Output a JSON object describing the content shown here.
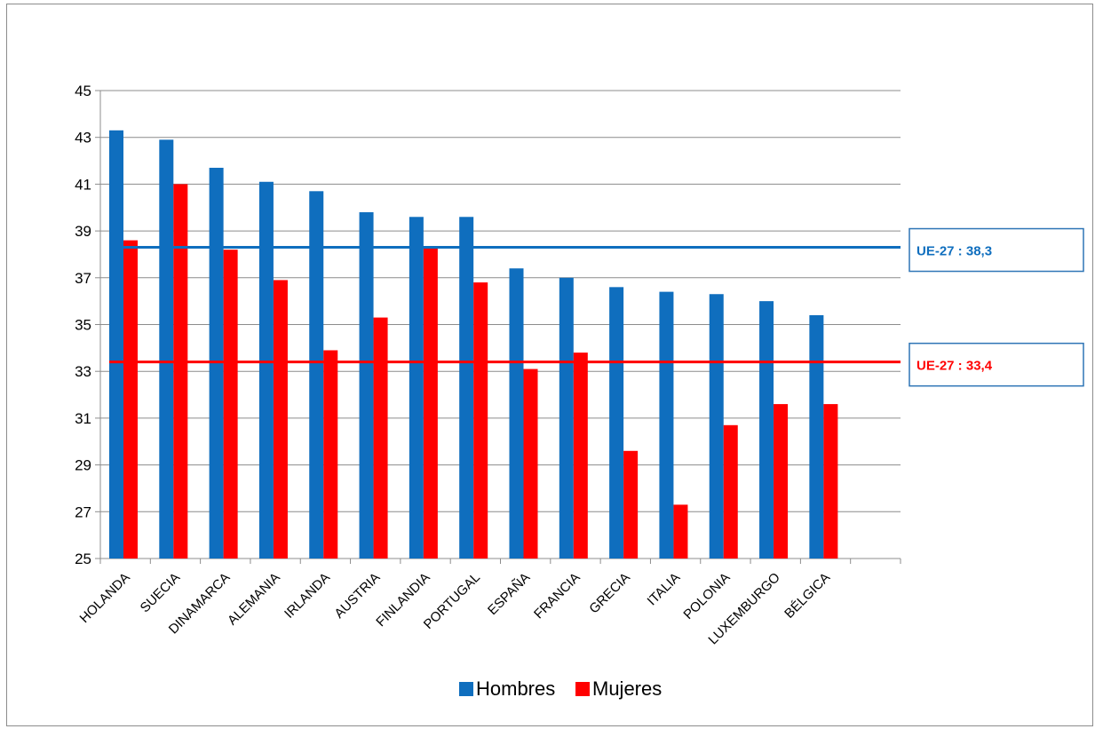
{
  "chart_data": {
    "type": "bar",
    "categories": [
      "HOLANDA",
      "SUECIA",
      "DINAMARCA",
      "ALEMANIA",
      "IRLANDA",
      "AUSTRIA",
      "FINLANDIA",
      "PORTUGAL",
      "ESPAÑA",
      "FRANCIA",
      "GRECIA",
      "ITALIA",
      "POLONIA",
      "LUXEMBURGO",
      "BÉLGICA"
    ],
    "series": [
      {
        "name": "Hombres",
        "color": "#0f6ebe",
        "values": [
          43.3,
          42.9,
          41.7,
          41.1,
          40.7,
          39.8,
          39.6,
          39.6,
          37.4,
          37.0,
          36.6,
          36.4,
          36.3,
          36.0,
          35.4
        ]
      },
      {
        "name": "Mujeres",
        "color": "#ff0000",
        "values": [
          38.6,
          41.0,
          38.2,
          36.9,
          33.9,
          35.3,
          38.3,
          36.8,
          33.1,
          33.8,
          29.6,
          27.3,
          30.7,
          31.6,
          31.6
        ]
      }
    ],
    "ylim": [
      25,
      45
    ],
    "yticks": [
      "25",
      "27",
      "29",
      "31",
      "33",
      "35",
      "37",
      "39",
      "41",
      "43",
      "45"
    ],
    "grid": true,
    "legend": "bottom",
    "reference_lines": [
      {
        "label": "UE-27 : 38,3",
        "value": 38.3,
        "color": "#0f6ebe"
      },
      {
        "label": "UE-27 : 33,4",
        "value": 33.4,
        "color": "#ff0000"
      }
    ]
  }
}
